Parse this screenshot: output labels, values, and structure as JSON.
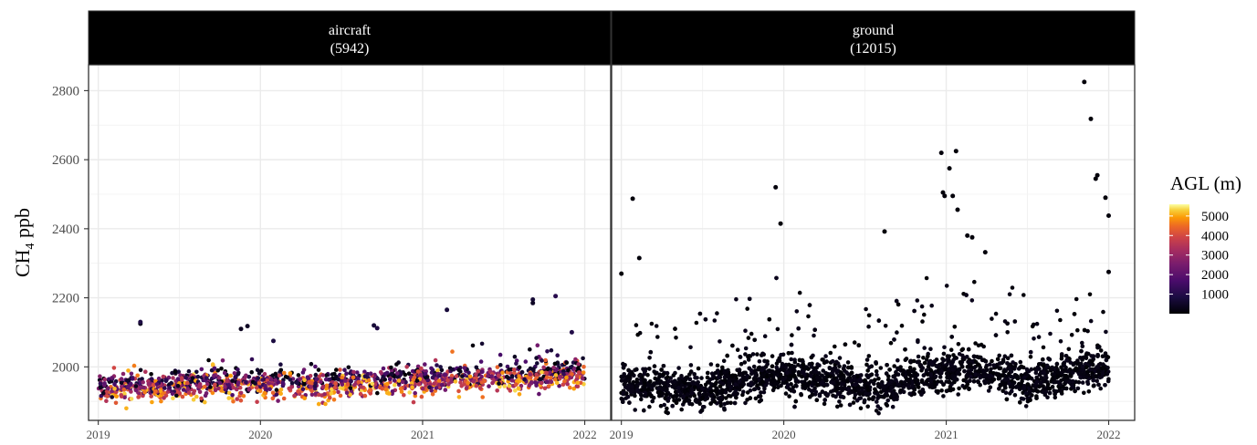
{
  "chart_data": {
    "type": "scatter",
    "ylabel_main": "CH",
    "ylabel_sub": "4",
    "ylabel_unit": " ppb",
    "ylim": [
      1845,
      2875
    ],
    "y_ticks": [
      2000,
      2200,
      2400,
      2600,
      2800
    ],
    "y_tick_labels": [
      "2000",
      "2200",
      "2400",
      "2600",
      "2800"
    ],
    "xlim": [
      2018.94,
      2022.16
    ],
    "x_ticks": [
      2019,
      2020,
      2021,
      2022
    ],
    "x_tick_labels": [
      "2019",
      "2020",
      "2021",
      "2022"
    ],
    "grid": true,
    "facets": [
      {
        "key": "aircraft",
        "label": "aircraft",
        "count": "(5942)",
        "n_points": 5942
      },
      {
        "key": "ground",
        "label": "ground",
        "count": "(12015)",
        "n_points": 12015
      }
    ],
    "color_scale": {
      "name": "inferno",
      "title": "AGL (m)",
      "range": [
        0,
        5600
      ],
      "ticks": [
        1000,
        2000,
        3000,
        4000,
        5000
      ],
      "tick_labels": [
        "1000",
        "2000",
        "3000",
        "4000",
        "5000"
      ],
      "legend_placement": "right"
    },
    "series": [
      {
        "name": "aircraft",
        "trend": [
          [
            2019.0,
            1935
          ],
          [
            2019.5,
            1948
          ],
          [
            2020.0,
            1952
          ],
          [
            2020.5,
            1950
          ],
          [
            2021.0,
            1965
          ],
          [
            2021.5,
            1968
          ],
          [
            2022.0,
            1985
          ]
        ],
        "extreme_points": [
          [
            2019.26,
            2125
          ],
          [
            2019.26,
            2130
          ],
          [
            2019.88,
            2110
          ],
          [
            2019.92,
            2118
          ],
          [
            2020.08,
            2075
          ],
          [
            2020.7,
            2120
          ],
          [
            2020.72,
            2112
          ],
          [
            2021.15,
            2165
          ],
          [
            2021.68,
            2195
          ],
          [
            2021.68,
            2185
          ],
          [
            2021.82,
            2205
          ],
          [
            2021.92,
            2100
          ]
        ]
      },
      {
        "name": "ground",
        "trend": [
          [
            2019.0,
            1950
          ],
          [
            2019.5,
            1930
          ],
          [
            2019.9,
            1975
          ],
          [
            2020.3,
            1965
          ],
          [
            2020.6,
            1930
          ],
          [
            2020.9,
            1985
          ],
          [
            2021.2,
            1990
          ],
          [
            2021.5,
            1950
          ],
          [
            2021.8,
            1985
          ],
          [
            2022.0,
            2000
          ]
        ],
        "extreme_points": [
          [
            2019.07,
            2487
          ],
          [
            2019.11,
            2315
          ],
          [
            2019.0,
            2270
          ],
          [
            2019.95,
            2520
          ],
          [
            2019.98,
            2415
          ],
          [
            2020.62,
            2392
          ],
          [
            2020.97,
            2620
          ],
          [
            2020.98,
            2505
          ],
          [
            2020.99,
            2495
          ],
          [
            2021.02,
            2575
          ],
          [
            2021.06,
            2625
          ],
          [
            2021.04,
            2495
          ],
          [
            2021.07,
            2455
          ],
          [
            2021.13,
            2380
          ],
          [
            2021.16,
            2375
          ],
          [
            2021.24,
            2332
          ],
          [
            2021.85,
            2825
          ],
          [
            2021.89,
            2718
          ],
          [
            2021.93,
            2555
          ],
          [
            2021.92,
            2545
          ],
          [
            2021.98,
            2490
          ],
          [
            2022.0,
            2438
          ],
          [
            2022.0,
            2275
          ]
        ]
      }
    ]
  }
}
